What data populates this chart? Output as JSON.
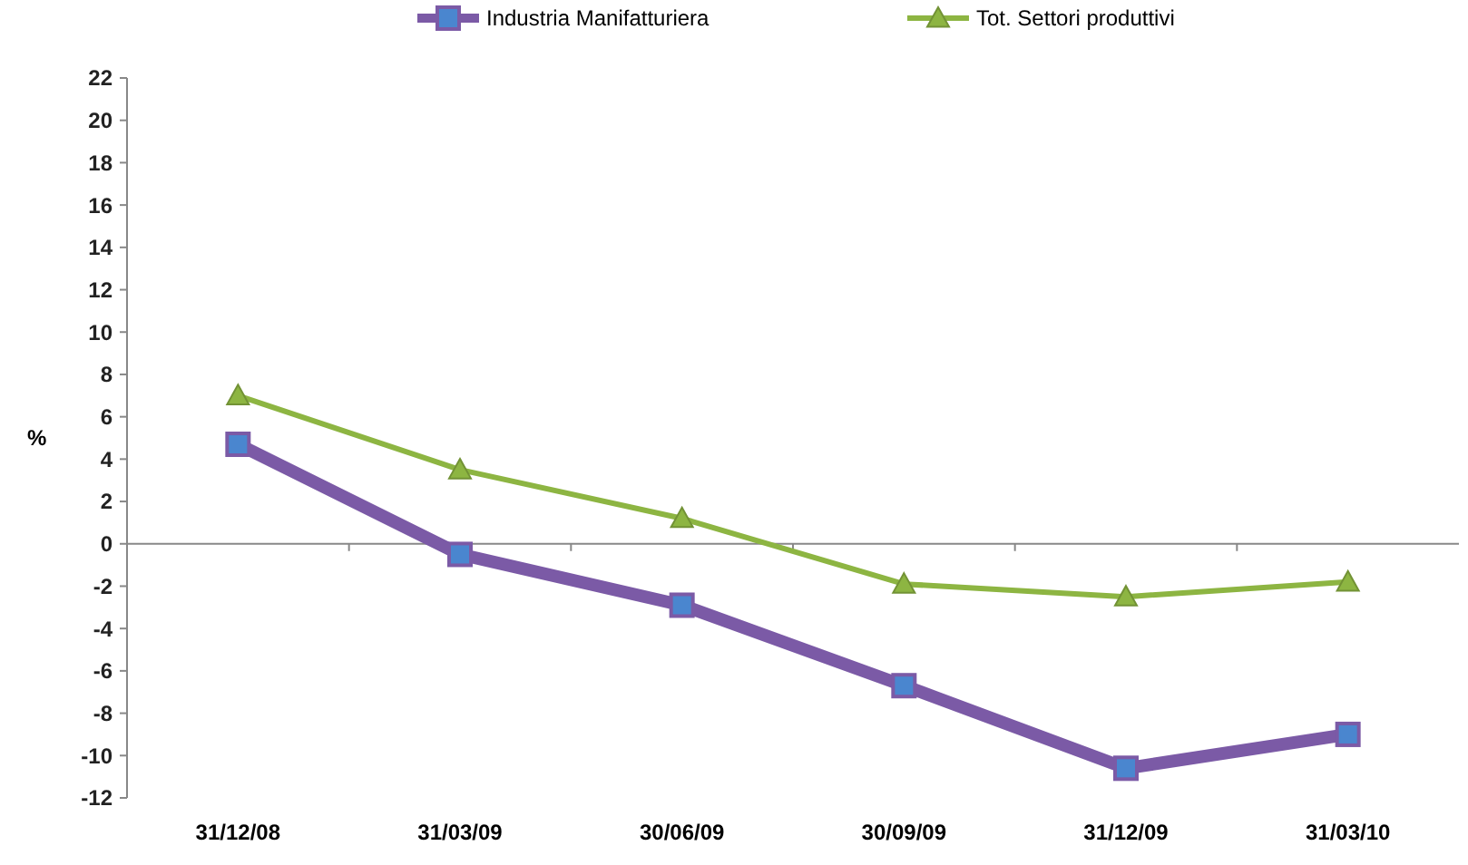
{
  "chart_data": {
    "type": "line",
    "ylabel": "%",
    "categories": [
      "31/12/08",
      "31/03/09",
      "30/06/09",
      "30/09/09",
      "31/12/09",
      "31/03/10"
    ],
    "series": [
      {
        "name": "Industria Manifatturiera",
        "color": "#7b5aa6",
        "marker": "square",
        "values": [
          4.7,
          -0.5,
          -2.9,
          -6.7,
          -10.6,
          -9.0
        ]
      },
      {
        "name": "Tot. Settori produttivi",
        "color": "#8db542",
        "marker": "triangle",
        "values": [
          7.0,
          3.5,
          1.2,
          -1.9,
          -2.5,
          -1.8
        ]
      }
    ],
    "ylim": [
      -12,
      22
    ],
    "yticks": [
      -12,
      -10,
      -8,
      -6,
      -4,
      -2,
      0,
      2,
      4,
      6,
      8,
      10,
      12,
      14,
      16,
      18,
      20,
      22
    ],
    "legend": "top"
  }
}
